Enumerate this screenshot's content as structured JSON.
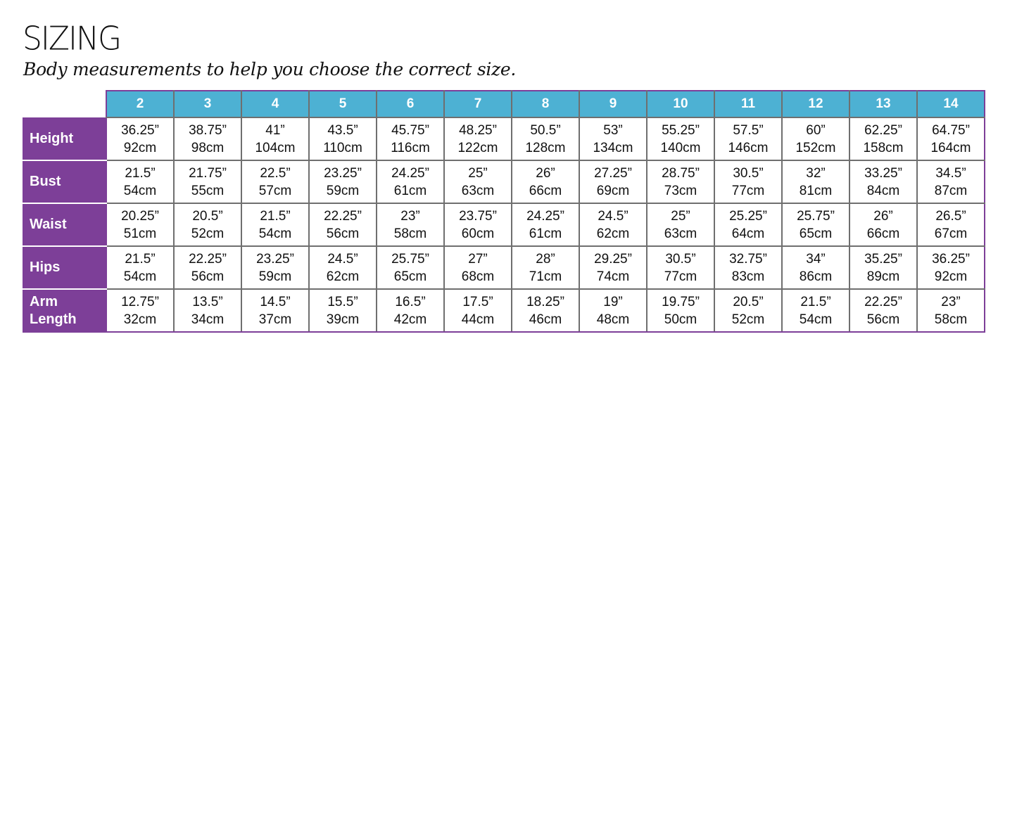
{
  "title": "SIZING",
  "subtitle": "Body measurements to help you choose the correct size.",
  "colors": {
    "header_bg": "#4db1d3",
    "label_bg": "#7d3f98",
    "border": "#6f6f6f"
  },
  "table": {
    "sizes": [
      "2",
      "3",
      "4",
      "5",
      "6",
      "7",
      "8",
      "9",
      "10",
      "11",
      "12",
      "13",
      "14"
    ],
    "rows": [
      {
        "label": "Height",
        "values": [
          [
            "36.25”",
            "92cm"
          ],
          [
            "38.75”",
            "98cm"
          ],
          [
            "41”",
            "104cm"
          ],
          [
            "43.5”",
            "110cm"
          ],
          [
            "45.75”",
            "116cm"
          ],
          [
            "48.25”",
            "122cm"
          ],
          [
            "50.5”",
            "128cm"
          ],
          [
            "53”",
            "134cm"
          ],
          [
            "55.25”",
            "140cm"
          ],
          [
            "57.5”",
            "146cm"
          ],
          [
            "60”",
            "152cm"
          ],
          [
            "62.25”",
            "158cm"
          ],
          [
            "64.75”",
            "164cm"
          ]
        ]
      },
      {
        "label": "Bust",
        "values": [
          [
            "21.5”",
            "54cm"
          ],
          [
            "21.75”",
            "55cm"
          ],
          [
            "22.5”",
            "57cm"
          ],
          [
            "23.25”",
            "59cm"
          ],
          [
            "24.25”",
            "61cm"
          ],
          [
            "25”",
            "63cm"
          ],
          [
            "26”",
            "66cm"
          ],
          [
            "27.25”",
            "69cm"
          ],
          [
            "28.75”",
            "73cm"
          ],
          [
            "30.5”",
            "77cm"
          ],
          [
            "32”",
            "81cm"
          ],
          [
            "33.25”",
            "84cm"
          ],
          [
            "34.5”",
            "87cm"
          ]
        ]
      },
      {
        "label": "Waist",
        "values": [
          [
            "20.25”",
            "51cm"
          ],
          [
            "20.5”",
            "52cm"
          ],
          [
            "21.5”",
            "54cm"
          ],
          [
            "22.25”",
            "56cm"
          ],
          [
            "23”",
            "58cm"
          ],
          [
            "23.75”",
            "60cm"
          ],
          [
            "24.25”",
            "61cm"
          ],
          [
            "24.5”",
            "62cm"
          ],
          [
            "25”",
            "63cm"
          ],
          [
            "25.25”",
            "64cm"
          ],
          [
            "25.75”",
            "65cm"
          ],
          [
            "26”",
            "66cm"
          ],
          [
            "26.5”",
            "67cm"
          ]
        ]
      },
      {
        "label": "Hips",
        "values": [
          [
            "21.5”",
            "54cm"
          ],
          [
            "22.25”",
            "56cm"
          ],
          [
            "23.25”",
            "59cm"
          ],
          [
            "24.5”",
            "62cm"
          ],
          [
            "25.75”",
            "65cm"
          ],
          [
            "27”",
            "68cm"
          ],
          [
            "28”",
            "71cm"
          ],
          [
            "29.25”",
            "74cm"
          ],
          [
            "30.5”",
            "77cm"
          ],
          [
            "32.75”",
            "83cm"
          ],
          [
            "34”",
            "86cm"
          ],
          [
            "35.25”",
            "89cm"
          ],
          [
            "36.25”",
            "92cm"
          ]
        ]
      },
      {
        "label": "Arm Length",
        "values": [
          [
            "12.75”",
            "32cm"
          ],
          [
            "13.5”",
            "34cm"
          ],
          [
            "14.5”",
            "37cm"
          ],
          [
            "15.5”",
            "39cm"
          ],
          [
            "16.5”",
            "42cm"
          ],
          [
            "17.5”",
            "44cm"
          ],
          [
            "18.25”",
            "46cm"
          ],
          [
            "19”",
            "48cm"
          ],
          [
            "19.75”",
            "50cm"
          ],
          [
            "20.5”",
            "52cm"
          ],
          [
            "21.5”",
            "54cm"
          ],
          [
            "22.25”",
            "56cm"
          ],
          [
            "23”",
            "58cm"
          ]
        ]
      }
    ]
  }
}
